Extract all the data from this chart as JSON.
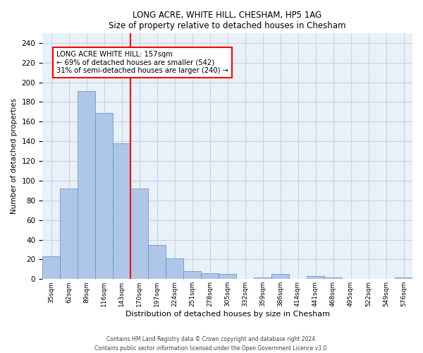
{
  "title": "LONG ACRE, WHITE HILL, CHESHAM, HP5 1AG",
  "subtitle": "Size of property relative to detached houses in Chesham",
  "xlabel": "Distribution of detached houses by size in Chesham",
  "ylabel": "Number of detached properties",
  "bar_labels": [
    "35sqm",
    "62sqm",
    "89sqm",
    "116sqm",
    "143sqm",
    "170sqm",
    "197sqm",
    "224sqm",
    "251sqm",
    "278sqm",
    "305sqm",
    "332sqm",
    "359sqm",
    "386sqm",
    "414sqm",
    "441sqm",
    "468sqm",
    "495sqm",
    "522sqm",
    "549sqm",
    "576sqm"
  ],
  "bar_values": [
    23,
    92,
    191,
    169,
    138,
    92,
    35,
    21,
    8,
    6,
    5,
    0,
    2,
    5,
    0,
    3,
    2,
    0,
    0,
    0,
    2
  ],
  "bar_color": "#aec6e8",
  "bar_edge_color": "#5b8fc9",
  "vline_x": 4.5,
  "vline_color": "red",
  "annotation_text_line1": "LONG ACRE WHITE HILL: 157sqm",
  "annotation_text_line2": "← 69% of detached houses are smaller (542)",
  "annotation_text_line3": "31% of semi-detached houses are larger (240) →",
  "ylim": [
    0,
    250
  ],
  "yticks": [
    0,
    20,
    40,
    60,
    80,
    100,
    120,
    140,
    160,
    180,
    200,
    220,
    240
  ],
  "grid_color": "#c8d4e0",
  "background_color": "#e8f0f8",
  "footer_line1": "Contains HM Land Registry data © Crown copyright and database right 2024.",
  "footer_line2": "Contains public sector information licensed under the Open Government Licence v3.0."
}
